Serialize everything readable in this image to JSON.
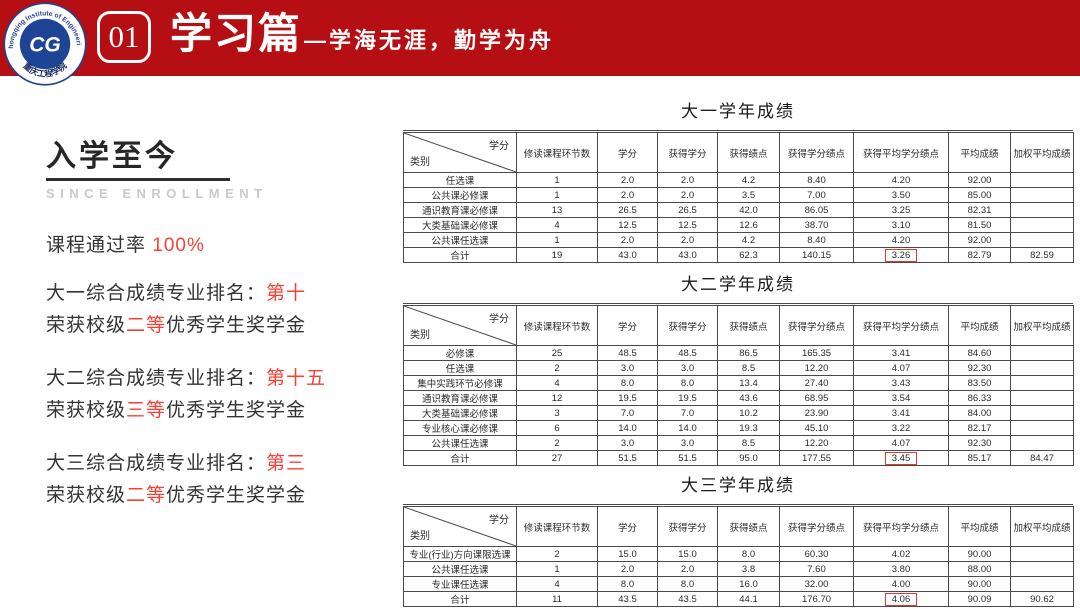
{
  "banner": {
    "number": "01",
    "title": "学习篇",
    "subtitle": "—学海无涯，勤学为舟",
    "bg_color": "#b50e13",
    "logo": {
      "ring_text": "Chongqing Institute of Engineering",
      "center_text": "CG",
      "bottom_text": "重庆工程学院"
    }
  },
  "left": {
    "heading": "入学至今",
    "subheading": "SINCE ENROLLMENT",
    "pass_rate": {
      "label": "课程通过率 ",
      "value": "100%"
    },
    "accent_color": "#fa3f35",
    "stats": [
      {
        "rank_prefix": "大一综合成绩专业排名：",
        "rank": "第十",
        "award_prefix": "荣获校级",
        "award_level": "二等",
        "award_suffix": "优秀学生奖学金"
      },
      {
        "rank_prefix": "大二综合成绩专业排名：",
        "rank": "第十五",
        "award_prefix": "荣获校级",
        "award_level": "三等",
        "award_suffix": "优秀学生奖学金"
      },
      {
        "rank_prefix": "大三综合成绩专业排名：",
        "rank": "第三",
        "award_prefix": "荣获校级",
        "award_level": "二等",
        "award_suffix": "优秀学生奖学金"
      }
    ]
  },
  "tables": [
    {
      "title": "大一学年成绩",
      "corner": {
        "top": "学分",
        "bottom": "类别"
      },
      "columns": [
        "修读课程环节数",
        "学分",
        "获得学分",
        "获得绩点",
        "获得学分绩点",
        "获得平均学分绩点",
        "平均成绩",
        "加权平均成绩"
      ],
      "rows": [
        {
          "label": "任选课",
          "values": [
            "1",
            "2.0",
            "2.0",
            "4.2",
            "8.40",
            "4.20",
            "92.00",
            ""
          ]
        },
        {
          "label": "公共课必修课",
          "values": [
            "1",
            "2.0",
            "2.0",
            "3.5",
            "7.00",
            "3.50",
            "85.00",
            ""
          ]
        },
        {
          "label": "通识教育课必修课",
          "values": [
            "13",
            "26.5",
            "26.5",
            "42.0",
            "86.05",
            "3.25",
            "82.31",
            ""
          ]
        },
        {
          "label": "大类基础课必修课",
          "values": [
            "4",
            "12.5",
            "12.5",
            "12.6",
            "38.70",
            "3.10",
            "81.50",
            ""
          ]
        },
        {
          "label": "公共课任选课",
          "values": [
            "1",
            "2.0",
            "2.0",
            "4.2",
            "8.40",
            "4.20",
            "92.00",
            ""
          ]
        },
        {
          "label": "合计",
          "values": [
            "19",
            "43.0",
            "43.0",
            "62.3",
            "140.15",
            "3.26",
            "82.79",
            "82.59"
          ],
          "highlight_index": 5
        }
      ]
    },
    {
      "title": "大二学年成绩",
      "corner": {
        "top": "学分",
        "bottom": "类别"
      },
      "columns": [
        "修读课程环节数",
        "学分",
        "获得学分",
        "获得绩点",
        "获得学分绩点",
        "获得平均学分绩点",
        "平均成绩",
        "加权平均成绩"
      ],
      "rows": [
        {
          "label": "必修课",
          "values": [
            "25",
            "48.5",
            "48.5",
            "86.5",
            "165.35",
            "3.41",
            "84.60",
            ""
          ]
        },
        {
          "label": "任选课",
          "values": [
            "2",
            "3.0",
            "3.0",
            "8.5",
            "12.20",
            "4.07",
            "92.30",
            ""
          ]
        },
        {
          "label": "集中实践环节必修课",
          "values": [
            "4",
            "8.0",
            "8.0",
            "13.4",
            "27.40",
            "3.43",
            "83.50",
            ""
          ]
        },
        {
          "label": "通识教育课必修课",
          "values": [
            "12",
            "19.5",
            "19.5",
            "43.6",
            "68.95",
            "3.54",
            "86.33",
            ""
          ]
        },
        {
          "label": "大类基础课必修课",
          "values": [
            "3",
            "7.0",
            "7.0",
            "10.2",
            "23.90",
            "3.41",
            "84.00",
            ""
          ]
        },
        {
          "label": "专业核心课必修课",
          "values": [
            "6",
            "14.0",
            "14.0",
            "19.3",
            "45.10",
            "3.22",
            "82.17",
            ""
          ]
        },
        {
          "label": "公共课任选课",
          "values": [
            "2",
            "3.0",
            "3.0",
            "8.5",
            "12.20",
            "4.07",
            "92.30",
            ""
          ]
        },
        {
          "label": "合计",
          "values": [
            "27",
            "51.5",
            "51.5",
            "95.0",
            "177.55",
            "3.45",
            "85.17",
            "84.47"
          ],
          "highlight_index": 5
        }
      ]
    },
    {
      "title": "大三学年成绩",
      "corner": {
        "top": "学分",
        "bottom": "类别"
      },
      "columns": [
        "修读课程环节数",
        "学分",
        "获得学分",
        "获得绩点",
        "获得学分绩点",
        "获得平均学分绩点",
        "平均成绩",
        "加权平均成绩"
      ],
      "rows": [
        {
          "label": "专业(行业)方向课限选课",
          "values": [
            "2",
            "15.0",
            "15.0",
            "8.0",
            "60.30",
            "4.02",
            "90.00",
            ""
          ]
        },
        {
          "label": "公共课任选课",
          "values": [
            "1",
            "2.0",
            "2.0",
            "3.8",
            "7.60",
            "3.80",
            "88.00",
            ""
          ]
        },
        {
          "label": "专业课任选课",
          "values": [
            "4",
            "8.0",
            "8.0",
            "16.0",
            "32.00",
            "4.00",
            "90.00",
            ""
          ]
        },
        {
          "label": "合计",
          "values": [
            "11",
            "43.5",
            "43.5",
            "44.1",
            "176.70",
            "4.06",
            "90.09",
            "90.62"
          ],
          "highlight_index": 5
        }
      ]
    }
  ]
}
